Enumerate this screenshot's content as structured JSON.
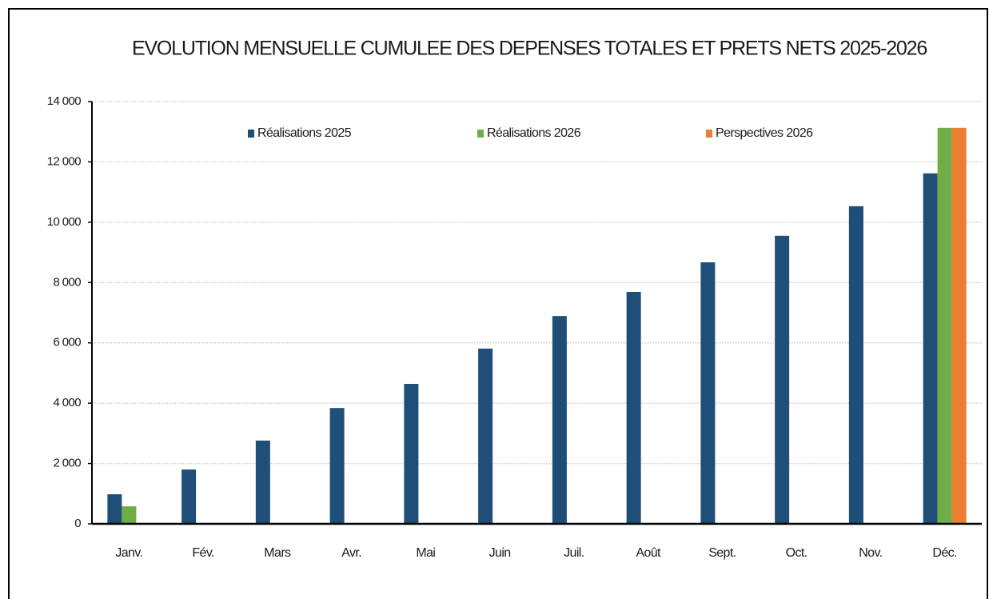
{
  "chart_data": {
    "type": "bar",
    "title": "EVOLUTION MENSUELLE CUMULEE DES DEPENSES TOTALES ET PRETS NETS 2025-2026",
    "categories": [
      "Janv.",
      "Fév.",
      "Mars",
      "Avr.",
      "Mai",
      "Juin",
      "Juil.",
      "Août",
      "Sept.",
      "Oct.",
      "Nov.",
      "Déc."
    ],
    "series": [
      {
        "name": "Réalisations 2025",
        "color": "#1f4e79",
        "values": [
          980,
          1800,
          2760,
          3840,
          4640,
          5810,
          6890,
          7690,
          8670,
          9550,
          10530,
          11620
        ]
      },
      {
        "name": "Réalisations 2026",
        "color": "#70ad47",
        "values": [
          580,
          null,
          null,
          null,
          null,
          null,
          null,
          null,
          null,
          null,
          null,
          13130
        ]
      },
      {
        "name": "Perspectives 2026",
        "color": "#ed7d31",
        "values": [
          null,
          null,
          null,
          null,
          null,
          null,
          null,
          null,
          null,
          null,
          null,
          13130
        ]
      }
    ],
    "ylim": [
      0,
      14000
    ],
    "yticks": [
      0,
      {
        "value": 2000,
        "label": "2 000"
      },
      {
        "value": 4000,
        "label": "4 000"
      },
      {
        "value": 6000,
        "label": "6 000"
      },
      {
        "value": 8000,
        "label": "8 000"
      },
      {
        "value": 10000,
        "label": "10 000"
      },
      {
        "value": 12000,
        "label": "12 000"
      },
      {
        "value": 14000,
        "label": "14 000"
      }
    ],
    "grid": true,
    "legend": "top"
  }
}
